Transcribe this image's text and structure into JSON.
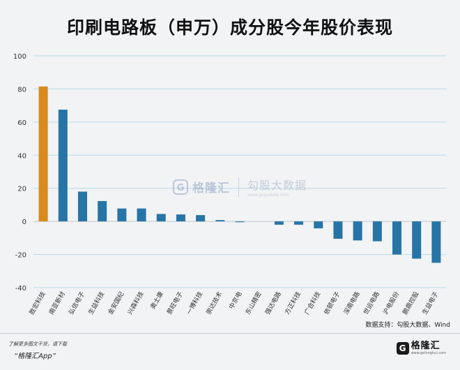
{
  "title": "印刷电路板（申万）成分股今年股价表现",
  "source": "数据支持：勾股大数据、Wind",
  "footer": {
    "line1": "了解更多图文干货，请下载",
    "line2": "“格隆汇App”",
    "logo_name": "格隆汇",
    "logo_url": "www.gelonghui.com"
  },
  "watermark": {
    "brand": "格隆汇",
    "brand_url": "www.gelonghui.com",
    "product": "勾股大数据",
    "product_url": "www.gogudata.com"
  },
  "colors": {
    "highlight": "#d98a1e",
    "bar": "#2774a6",
    "grid": "#b8dbe8",
    "axis": "#c2c5c9"
  },
  "chart_data": {
    "type": "bar",
    "categories": [
      "胜宏科技",
      "南亚新材",
      "弘信电子",
      "生益科技",
      "金安国纪",
      "兴森科技",
      "奥士康",
      "景旺电子",
      "一博科技",
      "崇达技术",
      "中京电",
      "东山精密",
      "强达电路",
      "方正科技",
      "广合科技",
      "依顿电子",
      "深南电路",
      "世运电路",
      "沪电股份",
      "鹏鼎控股",
      "生益电子"
    ],
    "values": [
      81.5,
      67.5,
      18,
      12.3,
      7.8,
      7.8,
      4.5,
      4.2,
      3.8,
      0.8,
      -0.5,
      0,
      -2,
      -2,
      -4.2,
      -10.5,
      -11.5,
      -12,
      -20,
      -22.5,
      -25
    ],
    "highlight_index": 0,
    "ylim": [
      -40,
      100
    ],
    "yticks": [
      -40,
      -20,
      0,
      20,
      40,
      60,
      80,
      100
    ],
    "grid": true,
    "xlabel": "",
    "ylabel": ""
  }
}
